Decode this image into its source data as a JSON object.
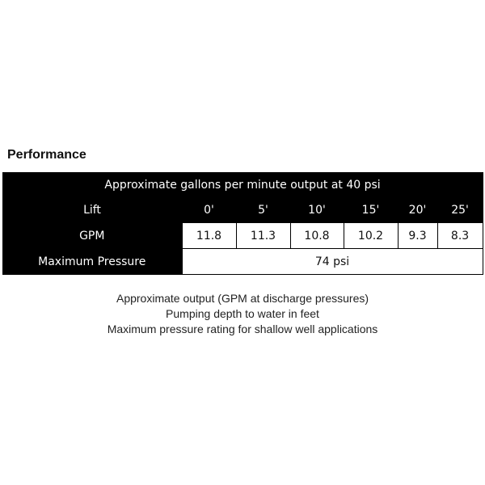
{
  "title": "Performance",
  "table": {
    "caption": "Approximate gallons per minute output at 40 psi",
    "lift_label": "Lift",
    "lifts": [
      "0'",
      "5'",
      "10'",
      "15'",
      "20'",
      "25'"
    ],
    "gpm_label": "GPM",
    "gpm": [
      "11.8",
      "11.3",
      "10.8",
      "10.2",
      "9.3",
      "8.3"
    ],
    "max_pressure_label": "Maximum Pressure",
    "max_pressure": "74 psi"
  },
  "notes": [
    "Approximate output (GPM at discharge pressures)",
    "Pumping depth to water in feet",
    "Maximum pressure rating for shallow well applications"
  ]
}
